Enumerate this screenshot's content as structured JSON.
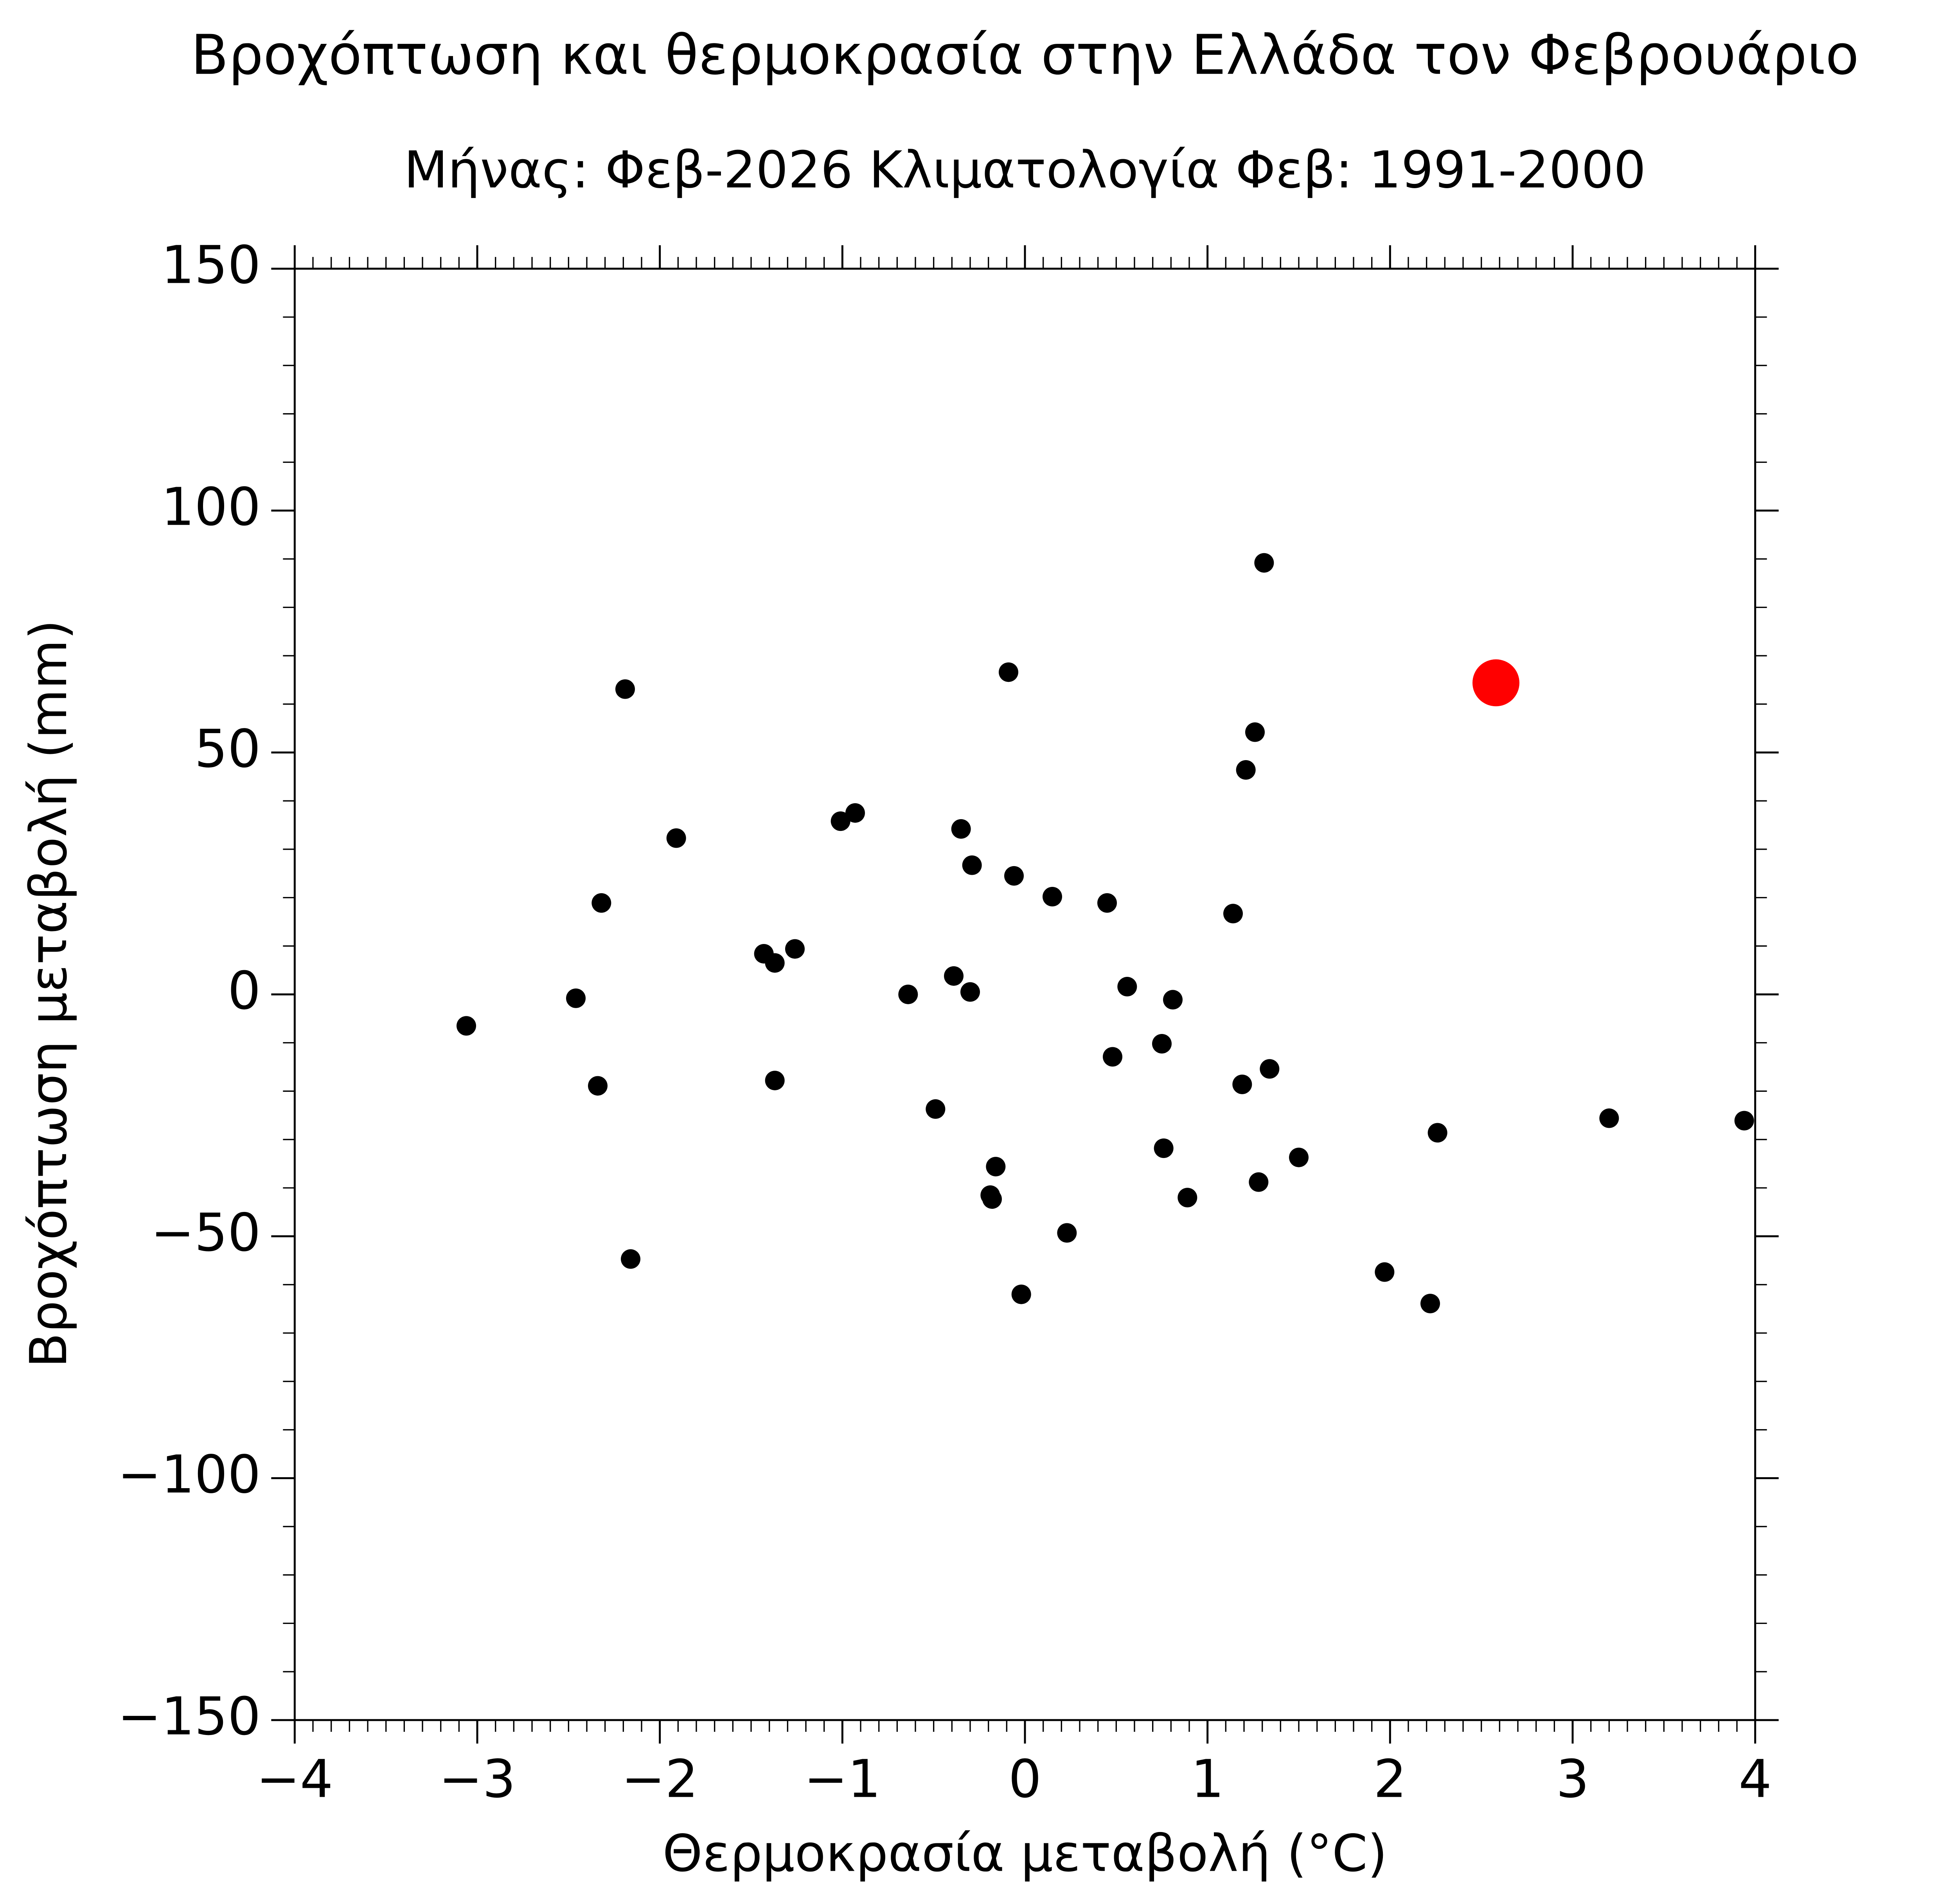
{
  "chart_data": {
    "type": "scatter",
    "title": "Βροχόπτωση και θερμοκρασία στην Ελλάδα τον Φεβρουάριο",
    "subtitle": "Μήνας: Φεβ-2026  Κλιματολογία Φεβ: 1991-2000",
    "xlabel": "Θερμοκρασία μεταβολή (°C)",
    "ylabel": "Βροχόπτωση μεταβολή (mm)",
    "xlim": [
      -4,
      4
    ],
    "ylim": [
      -150,
      150
    ],
    "xticks": [
      {
        "value": -4,
        "label": "−4"
      },
      {
        "value": -3,
        "label": "−3"
      },
      {
        "value": -2,
        "label": "−2"
      },
      {
        "value": -1,
        "label": "−1"
      },
      0,
      1,
      2,
      3,
      4
    ],
    "yticks": [
      {
        "value": -150,
        "label": "−150"
      },
      {
        "value": -100,
        "label": "−100"
      },
      {
        "value": -50,
        "label": "−50"
      },
      0,
      50,
      100,
      150
    ],
    "grid": false,
    "series": [
      {
        "color": "#000000",
        "x": [
          -3.06,
          -2.46,
          -2.34,
          -2.32,
          -2.19,
          -2.16,
          -1.91,
          -1.43,
          -1.37,
          -1.37,
          -1.26,
          -1.01,
          -0.93,
          -0.64,
          -0.49,
          -0.39,
          -0.35,
          -0.3,
          -0.29,
          -0.19,
          -0.18,
          -0.16,
          -0.09,
          -0.06,
          -0.02,
          0.15,
          0.23,
          0.45,
          0.48,
          0.56,
          0.75,
          0.76,
          0.81,
          0.89,
          1.14,
          1.19,
          1.21,
          1.26,
          1.28,
          1.31,
          1.34,
          1.5,
          1.97,
          2.22,
          2.26,
          3.2,
          3.94
        ],
        "values": [
          -6.5,
          -0.8,
          -18.9,
          18.9,
          63.1,
          -54.7,
          32.3,
          8.4,
          6.5,
          -17.8,
          9.4,
          35.8,
          37.5,
          0,
          -23.7,
          3.8,
          34.2,
          0.5,
          26.7,
          -41.5,
          -42.3,
          -35.6,
          66.6,
          24.5,
          -62.0,
          20.2,
          -49.3,
          18.9,
          -12.9,
          1.6,
          -10.2,
          -31.8,
          -1.1,
          -42.0,
          16.7,
          -18.6,
          46.4,
          54.2,
          -38.8,
          89.2,
          -15.4,
          -33.7,
          -57.4,
          -63.9,
          -28.6,
          -25.6,
          -26.1
        ]
      },
      {
        "color": "#ff0000",
        "x": [
          2.58
        ],
        "values": [
          64.4
        ]
      }
    ]
  }
}
